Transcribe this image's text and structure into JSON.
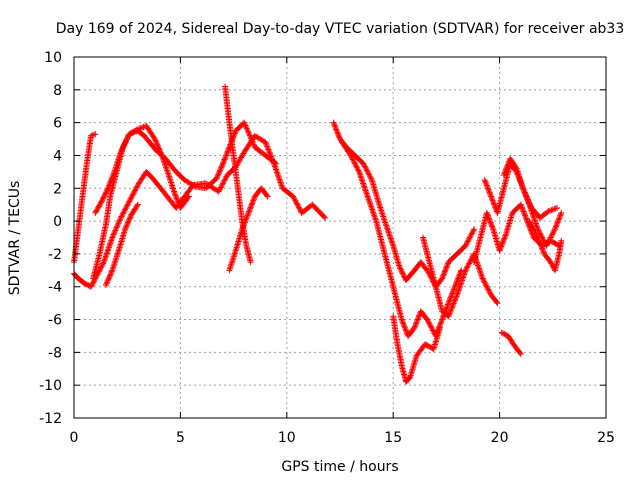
{
  "chart_data": {
    "type": "scatter",
    "title": "Day 169 of 2024, Sidereal Day-to-day VTEC variation (SDTVAR) for receiver ab33",
    "xlabel": "GPS time / hours",
    "ylabel": "SDTVAR / TECUs",
    "xlim": [
      0,
      25
    ],
    "ylim": [
      -12,
      10
    ],
    "x_ticks": [
      "0",
      "5",
      "10",
      "15",
      "20",
      "25"
    ],
    "y_ticks": [
      "-12",
      "-10",
      "-8",
      "-6",
      "-4",
      "-2",
      "0",
      "2",
      "4",
      "6",
      "8",
      "10"
    ],
    "grid": true,
    "marker": "+",
    "series": [
      {
        "name": "SDTVAR",
        "color": "#ff0000",
        "tracks": [
          [
            [
              0.0,
              -3.2
            ],
            [
              0.2,
              -3.5
            ],
            [
              0.5,
              -3.8
            ],
            [
              0.8,
              -4.0
            ],
            [
              1.0,
              -3.5
            ],
            [
              1.4,
              -2.5
            ],
            [
              1.8,
              -1.0
            ],
            [
              2.2,
              0.2
            ],
            [
              2.6,
              1.2
            ],
            [
              3.0,
              2.2
            ],
            [
              3.4,
              3.0
            ],
            [
              3.7,
              2.6
            ],
            [
              4.2,
              1.8
            ],
            [
              4.8,
              0.8
            ],
            [
              5.2,
              1.5
            ],
            [
              5.6,
              2.2
            ],
            [
              6.2,
              2.3
            ],
            [
              6.8,
              1.8
            ],
            [
              7.2,
              2.8
            ],
            [
              7.6,
              3.3
            ],
            [
              8.0,
              4.2
            ],
            [
              8.5,
              5.2
            ],
            [
              9.0,
              4.8
            ],
            [
              9.4,
              3.5
            ],
            [
              9.8,
              2.0
            ],
            [
              10.3,
              1.5
            ],
            [
              10.7,
              0.5
            ],
            [
              11.2,
              1.0
            ],
            [
              11.8,
              0.2
            ]
          ],
          [
            [
              0.0,
              -2.5
            ],
            [
              0.2,
              -0.5
            ],
            [
              0.4,
              1.5
            ],
            [
              0.6,
              3.5
            ],
            [
              0.8,
              5.2
            ],
            [
              1.0,
              5.3
            ]
          ],
          [
            [
              0.9,
              -3.5
            ],
            [
              1.2,
              -2.0
            ],
            [
              1.5,
              -0.2
            ],
            [
              1.7,
              1.5
            ],
            [
              2.0,
              3.0
            ],
            [
              2.3,
              4.5
            ],
            [
              2.6,
              5.3
            ],
            [
              3.0,
              5.5
            ],
            [
              3.3,
              5.2
            ],
            [
              3.8,
              4.4
            ],
            [
              4.3,
              3.8
            ],
            [
              4.8,
              3.0
            ],
            [
              5.2,
              2.5
            ],
            [
              5.7,
              2.1
            ],
            [
              6.2,
              2.0
            ],
            [
              6.7,
              2.6
            ],
            [
              7.0,
              3.5
            ],
            [
              7.3,
              4.5
            ],
            [
              7.6,
              5.5
            ],
            [
              8.0,
              6.0
            ],
            [
              8.5,
              4.5
            ],
            [
              9.0,
              4.0
            ],
            [
              9.5,
              3.5
            ]
          ],
          [
            [
              1.0,
              0.5
            ],
            [
              1.3,
              1.2
            ],
            [
              1.6,
              2.0
            ],
            [
              1.9,
              3.0
            ],
            [
              2.2,
              4.2
            ],
            [
              2.6,
              5.3
            ],
            [
              3.0,
              5.6
            ],
            [
              3.4,
              5.8
            ],
            [
              3.8,
              5.0
            ],
            [
              4.1,
              4.1
            ],
            [
              4.4,
              3.0
            ],
            [
              4.7,
              1.8
            ],
            [
              5.0,
              0.8
            ],
            [
              5.4,
              1.5
            ]
          ],
          [
            [
              1.5,
              -3.9
            ],
            [
              1.8,
              -3.0
            ],
            [
              2.1,
              -1.8
            ],
            [
              2.4,
              -0.5
            ],
            [
              2.7,
              0.4
            ],
            [
              3.0,
              1.0
            ]
          ],
          [
            [
              7.1,
              8.2
            ],
            [
              7.3,
              6.0
            ],
            [
              7.5,
              4.0
            ],
            [
              7.7,
              2.0
            ],
            [
              7.9,
              0.0
            ],
            [
              8.1,
              -1.5
            ],
            [
              8.3,
              -2.5
            ]
          ],
          [
            [
              7.3,
              -3.0
            ],
            [
              7.6,
              -1.8
            ],
            [
              7.9,
              -0.5
            ],
            [
              8.2,
              0.5
            ],
            [
              8.5,
              1.5
            ],
            [
              8.8,
              2.0
            ],
            [
              9.1,
              1.5
            ]
          ],
          [
            [
              12.2,
              6.0
            ],
            [
              12.5,
              5.0
            ],
            [
              12.8,
              4.5
            ],
            [
              13.2,
              4.0
            ],
            [
              13.6,
              3.5
            ],
            [
              14.0,
              2.5
            ],
            [
              14.3,
              1.2
            ],
            [
              14.6,
              0.0
            ],
            [
              15.0,
              -1.5
            ],
            [
              15.3,
              -2.8
            ],
            [
              15.6,
              -3.6
            ],
            [
              16.0,
              -3.0
            ],
            [
              16.3,
              -2.5
            ],
            [
              16.7,
              -3.2
            ],
            [
              17.0,
              -4.0
            ],
            [
              17.3,
              -3.5
            ],
            [
              17.6,
              -2.5
            ],
            [
              18.0,
              -2.0
            ],
            [
              18.4,
              -1.5
            ],
            [
              18.8,
              -0.5
            ]
          ],
          [
            [
              12.6,
              4.8
            ],
            [
              13.0,
              4.0
            ],
            [
              13.4,
              3.0
            ],
            [
              13.8,
              1.5
            ],
            [
              14.2,
              0.0
            ],
            [
              14.5,
              -1.5
            ],
            [
              14.8,
              -3.0
            ],
            [
              15.1,
              -4.5
            ],
            [
              15.4,
              -6.0
            ],
            [
              15.7,
              -7.0
            ],
            [
              16.0,
              -6.5
            ],
            [
              16.3,
              -5.5
            ],
            [
              16.6,
              -6.0
            ],
            [
              17.0,
              -7.0
            ],
            [
              17.3,
              -6.0
            ],
            [
              17.6,
              -5.0
            ],
            [
              17.9,
              -4.0
            ],
            [
              18.2,
              -3.0
            ]
          ],
          [
            [
              15.0,
              -5.8
            ],
            [
              15.2,
              -7.5
            ],
            [
              15.4,
              -8.8
            ],
            [
              15.6,
              -9.8
            ],
            [
              15.8,
              -9.5
            ],
            [
              16.1,
              -8.2
            ],
            [
              16.5,
              -7.5
            ],
            [
              16.9,
              -7.8
            ],
            [
              17.2,
              -6.5
            ]
          ],
          [
            [
              16.4,
              -1.0
            ],
            [
              16.7,
              -2.5
            ],
            [
              17.0,
              -4.0
            ],
            [
              17.3,
              -5.5
            ],
            [
              17.6,
              -5.8
            ],
            [
              18.0,
              -4.5
            ],
            [
              18.4,
              -3.0
            ],
            [
              18.8,
              -2.0
            ],
            [
              19.2,
              -3.5
            ],
            [
              19.6,
              -4.5
            ],
            [
              19.9,
              -5.0
            ]
          ],
          [
            [
              18.8,
              -2.5
            ],
            [
              19.1,
              -1.0
            ],
            [
              19.4,
              0.5
            ],
            [
              19.7,
              -0.5
            ],
            [
              20.0,
              -1.8
            ],
            [
              20.3,
              -0.8
            ],
            [
              20.6,
              0.5
            ],
            [
              21.0,
              1.0
            ],
            [
              21.3,
              0.0
            ],
            [
              21.6,
              -1.0
            ],
            [
              22.0,
              -1.5
            ],
            [
              22.4,
              -1.2
            ],
            [
              22.8,
              -1.5
            ]
          ],
          [
            [
              19.3,
              2.5
            ],
            [
              19.6,
              1.5
            ],
            [
              19.9,
              0.5
            ],
            [
              20.2,
              2.0
            ],
            [
              20.5,
              3.5
            ],
            [
              20.8,
              3.0
            ],
            [
              21.1,
              2.0
            ],
            [
              21.4,
              1.0
            ],
            [
              21.8,
              -0.5
            ],
            [
              22.2,
              -1.5
            ],
            [
              22.6,
              -0.5
            ],
            [
              22.9,
              0.5
            ]
          ],
          [
            [
              20.2,
              2.8
            ],
            [
              20.5,
              3.8
            ],
            [
              20.8,
              3.2
            ],
            [
              21.1,
              2.0
            ],
            [
              21.5,
              0.8
            ],
            [
              21.9,
              0.2
            ],
            [
              22.3,
              0.6
            ],
            [
              22.7,
              0.8
            ]
          ],
          [
            [
              20.1,
              -6.8
            ],
            [
              20.4,
              -7.0
            ],
            [
              20.7,
              -7.6
            ],
            [
              21.0,
              -8.1
            ]
          ],
          [
            [
              21.4,
              0.0
            ],
            [
              21.8,
              -1.0
            ],
            [
              22.1,
              -2.0
            ],
            [
              22.4,
              -2.5
            ],
            [
              22.6,
              -3.0
            ],
            [
              22.8,
              -2.0
            ],
            [
              22.9,
              -1.2
            ]
          ]
        ]
      }
    ]
  }
}
